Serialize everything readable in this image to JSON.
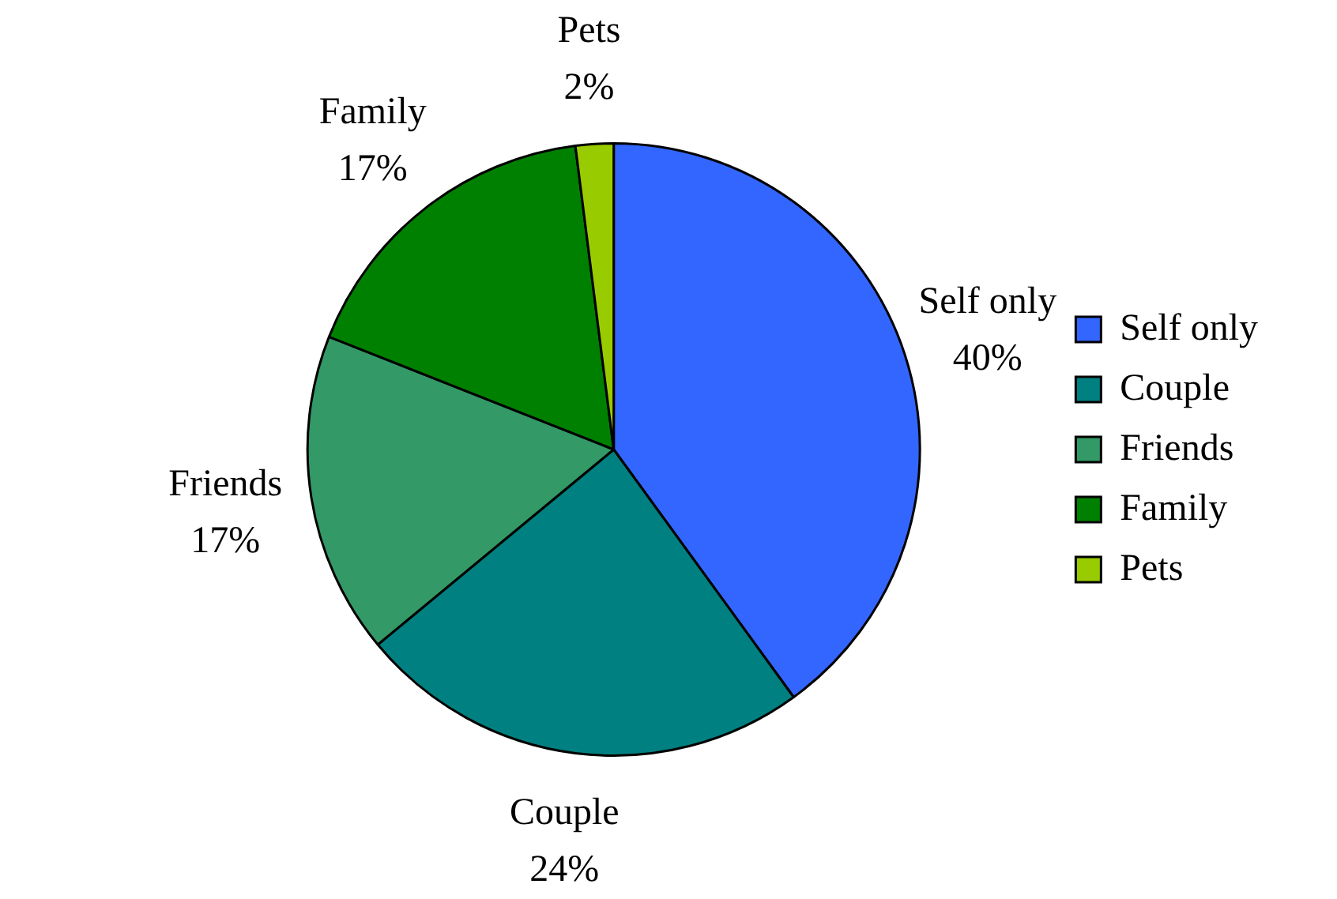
{
  "chart_data": {
    "type": "pie",
    "categories": [
      "Self only",
      "Couple",
      "Friends",
      "Family",
      "Pets"
    ],
    "values": [
      40,
      24,
      17,
      17,
      2
    ],
    "colors": [
      "#3366ff",
      "#008080",
      "#339966",
      "#008000",
      "#99cc00"
    ],
    "value_labels": [
      "40%",
      "24%",
      "17%",
      "17%",
      "2%"
    ],
    "legend": "right"
  }
}
